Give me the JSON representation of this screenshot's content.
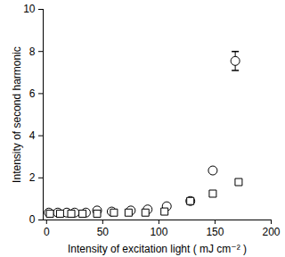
{
  "chart_data": {
    "type": "scatter",
    "x_label": "Intensity of excitation light ( mJ cm⁻² )",
    "y_label": "Intensity of second harmonic",
    "xlim": [
      -3,
      200
    ],
    "xticks": [
      0,
      50,
      100,
      150,
      200
    ],
    "ylim": [
      0,
      10
    ],
    "yticks": [
      0,
      2,
      4,
      6,
      8,
      10
    ],
    "grid": false,
    "series": [
      {
        "marker": "circle",
        "color": "#000000",
        "x": [
          2,
          10,
          18,
          25,
          35,
          45,
          58,
          75,
          90,
          107,
          128,
          148,
          168
        ],
        "values": [
          0.35,
          0.35,
          0.35,
          0.35,
          0.35,
          0.45,
          0.4,
          0.45,
          0.5,
          0.65,
          0.9,
          2.35,
          7.55
        ],
        "errors": [
          null,
          null,
          null,
          null,
          null,
          null,
          null,
          null,
          null,
          null,
          null,
          null,
          0.45
        ]
      },
      {
        "marker": "square",
        "color": "#000000",
        "x": [
          3,
          12,
          22,
          32,
          45,
          60,
          73,
          88,
          105,
          128,
          148,
          171
        ],
        "values": [
          0.3,
          0.3,
          0.3,
          0.3,
          0.3,
          0.35,
          0.35,
          0.35,
          0.4,
          0.9,
          1.25,
          1.8
        ]
      }
    ]
  }
}
